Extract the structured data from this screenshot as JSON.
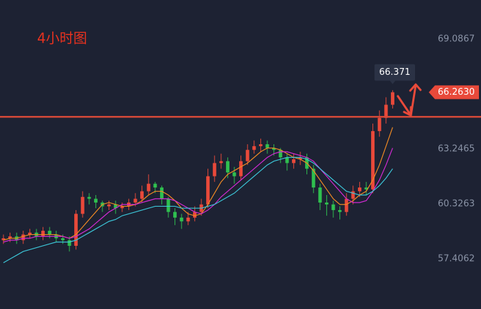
{
  "chart_data": {
    "type": "candlestick",
    "title": "4小时图",
    "open": [
      58.4,
      58.5,
      58.6,
      58.4,
      58.7,
      58.8,
      58.6,
      58.9,
      58.7,
      58.5,
      58.4,
      58.1,
      59.8,
      60.7,
      60.6,
      60.4,
      60.2,
      60.3,
      60.1,
      60.2,
      60.4,
      60.6,
      61.0,
      61.4,
      61.2,
      60.6,
      59.9,
      59.6,
      59.4,
      59.6,
      59.9,
      60.3,
      61.8,
      62.5,
      62.6,
      62.0,
      61.8,
      62.6,
      63.2,
      63.4,
      63.5,
      63.3,
      63.2,
      62.8,
      62.5,
      62.7,
      62.8,
      62.2,
      61.2,
      60.4,
      60.3,
      60.0,
      59.9,
      60.6,
      61.0,
      61.2,
      61.1,
      64.2,
      64.9,
      65.6
    ],
    "high": [
      58.7,
      58.8,
      58.8,
      58.9,
      59.0,
      59.0,
      59.1,
      59.1,
      58.9,
      58.7,
      58.6,
      60.0,
      61.0,
      60.9,
      60.8,
      60.5,
      60.5,
      60.5,
      60.4,
      60.6,
      60.9,
      61.3,
      61.9,
      61.5,
      61.3,
      60.7,
      60.1,
      59.8,
      59.9,
      60.2,
      60.6,
      62.2,
      62.9,
      63.0,
      62.8,
      62.3,
      62.9,
      63.5,
      63.7,
      63.8,
      63.7,
      63.5,
      63.3,
      63.0,
      63.0,
      63.1,
      63.0,
      62.4,
      61.4,
      60.8,
      60.5,
      60.2,
      60.9,
      61.3,
      61.5,
      61.5,
      64.6,
      65.3,
      66.0,
      66.371
    ],
    "low": [
      58.2,
      58.3,
      58.2,
      58.2,
      58.5,
      58.4,
      58.4,
      58.5,
      58.3,
      58.2,
      57.8,
      57.9,
      59.6,
      60.3,
      60.1,
      59.9,
      60.0,
      59.8,
      59.9,
      60.0,
      60.2,
      60.4,
      60.8,
      60.9,
      60.3,
      59.6,
      59.2,
      59.0,
      59.2,
      59.4,
      59.7,
      60.1,
      61.5,
      62.2,
      61.7,
      61.4,
      61.6,
      62.4,
      63.0,
      63.1,
      63.0,
      62.9,
      62.5,
      62.1,
      62.2,
      62.4,
      61.9,
      60.9,
      60.0,
      59.7,
      59.6,
      59.5,
      59.7,
      60.3,
      60.7,
      60.8,
      60.9,
      63.9,
      64.6,
      65.4
    ],
    "close": [
      58.5,
      58.6,
      58.4,
      58.7,
      58.8,
      58.6,
      58.9,
      58.7,
      58.5,
      58.4,
      58.1,
      59.8,
      60.7,
      60.6,
      60.4,
      60.2,
      60.3,
      60.1,
      60.2,
      60.4,
      60.6,
      61.0,
      61.4,
      61.2,
      60.6,
      59.9,
      59.6,
      59.4,
      59.6,
      59.9,
      60.3,
      61.8,
      62.5,
      62.6,
      62.0,
      61.8,
      62.6,
      63.2,
      63.4,
      63.5,
      63.3,
      63.2,
      62.8,
      62.5,
      62.7,
      62.8,
      62.2,
      61.2,
      60.4,
      60.3,
      60.0,
      59.9,
      60.6,
      61.0,
      61.2,
      61.1,
      64.2,
      64.9,
      65.6,
      66.263
    ],
    "up_color": "#e8493a",
    "down_color": "#2fbf4f",
    "series": [
      {
        "color": "#f08a24",
        "values": [
          58.4,
          58.5,
          58.5,
          58.6,
          58.7,
          58.7,
          58.7,
          58.7,
          58.7,
          58.6,
          58.5,
          58.7,
          59.1,
          59.5,
          59.9,
          60.3,
          60.4,
          60.3,
          60.2,
          60.2,
          60.3,
          60.5,
          60.8,
          61.0,
          61.0,
          60.8,
          60.5,
          60.1,
          59.8,
          59.7,
          59.8,
          60.3,
          60.9,
          61.5,
          61.9,
          62.1,
          62.3,
          62.5,
          62.8,
          63.1,
          63.3,
          63.3,
          63.2,
          63.0,
          62.8,
          62.7,
          62.5,
          62.1,
          61.6,
          61.1,
          60.6,
          60.3,
          60.3,
          60.5,
          60.8,
          61.0,
          61.6,
          62.4,
          63.4,
          64.4
        ]
      },
      {
        "color": "#d42ad4",
        "values": [
          58.3,
          58.4,
          58.4,
          58.5,
          58.5,
          58.6,
          58.6,
          58.6,
          58.6,
          58.6,
          58.5,
          58.6,
          58.8,
          59.0,
          59.3,
          59.6,
          59.9,
          60.1,
          60.3,
          60.3,
          60.3,
          60.4,
          60.5,
          60.6,
          60.6,
          60.6,
          60.5,
          60.3,
          60.1,
          59.9,
          59.8,
          60.0,
          60.3,
          60.7,
          61.0,
          61.3,
          61.6,
          61.9,
          62.2,
          62.5,
          62.8,
          63.0,
          63.1,
          63.1,
          63.0,
          62.9,
          62.8,
          62.6,
          62.2,
          61.8,
          61.4,
          61.0,
          60.6,
          60.4,
          60.4,
          60.5,
          61.0,
          61.6,
          62.4,
          63.3
        ]
      },
      {
        "color": "#3cc6d8",
        "values": [
          57.2,
          57.4,
          57.6,
          57.8,
          57.9,
          58.0,
          58.1,
          58.2,
          58.3,
          58.3,
          58.3,
          58.4,
          58.6,
          58.8,
          59.0,
          59.2,
          59.4,
          59.5,
          59.7,
          59.8,
          59.9,
          60.0,
          60.1,
          60.2,
          60.2,
          60.2,
          60.2,
          60.1,
          60.1,
          60.1,
          60.1,
          60.2,
          60.3,
          60.5,
          60.7,
          60.9,
          61.2,
          61.5,
          61.8,
          62.1,
          62.4,
          62.6,
          62.7,
          62.8,
          62.8,
          62.8,
          62.7,
          62.5,
          62.2,
          61.9,
          61.6,
          61.3,
          61.0,
          60.9,
          60.8,
          60.8,
          61.0,
          61.3,
          61.7,
          62.2
        ]
      }
    ],
    "ylim": [
      54.74,
      71.17
    ],
    "yticks": [
      57.4062,
      60.3263,
      63.2465,
      69.0867
    ],
    "hline": 64.96,
    "hline_color": "#d94a38",
    "last_price": {
      "value": 66.263,
      "label": "66.2630"
    }
  }
}
